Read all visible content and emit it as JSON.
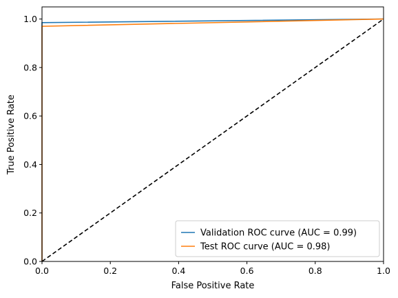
{
  "chart_data": {
    "type": "line",
    "xlabel": "False Positive Rate",
    "ylabel": "True Positive Rate",
    "xlim": [
      0.0,
      1.0
    ],
    "ylim": [
      0.0,
      1.05
    ],
    "x_ticks": [
      "0.0",
      "0.2",
      "0.4",
      "0.6",
      "0.8",
      "1.0"
    ],
    "y_ticks": [
      "0.0",
      "0.2",
      "0.4",
      "0.6",
      "0.8",
      "1.0"
    ],
    "legend_position": "lower-right",
    "grid": false,
    "series": [
      {
        "name": "Validation ROC curve (AUC = 0.99)",
        "color": "#1f77b4",
        "x": [
          0.0,
          0.0,
          1.0
        ],
        "y": [
          0.0,
          0.985,
          1.0
        ]
      },
      {
        "name": "Test ROC curve (AUC = 0.98)",
        "color": "#ff7f0e",
        "x": [
          0.0,
          0.0,
          1.0
        ],
        "y": [
          0.0,
          0.97,
          1.0
        ]
      }
    ],
    "reference_line": {
      "style": "dashed",
      "color": "#000000",
      "x": [
        0.0,
        1.0
      ],
      "y": [
        0.0,
        1.0
      ]
    }
  }
}
